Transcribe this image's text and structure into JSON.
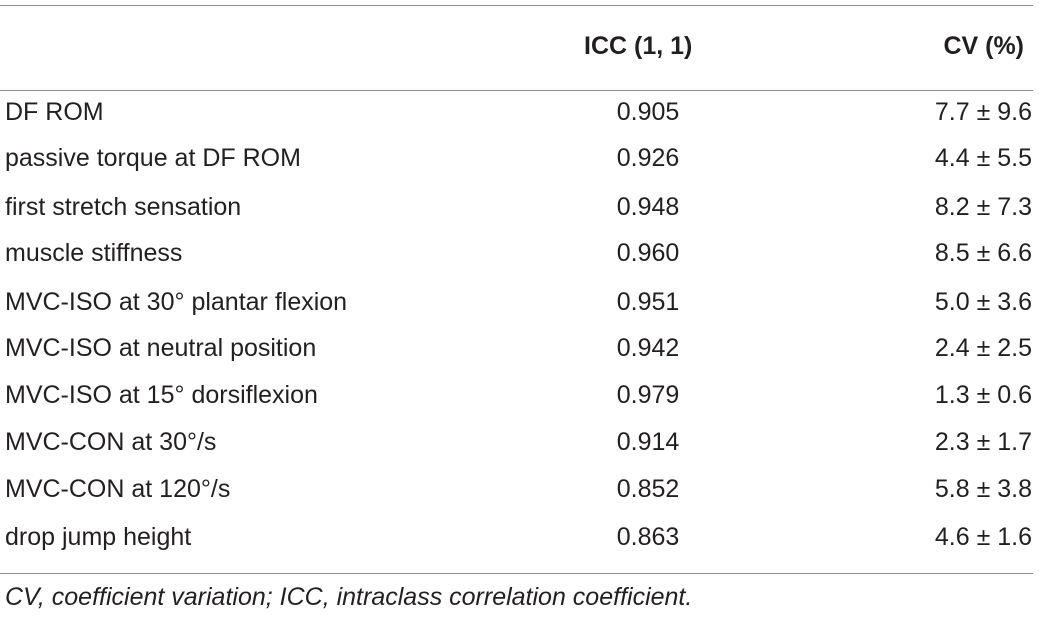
{
  "table": {
    "columns": {
      "icc": "ICC (1, 1)",
      "cv": "CV (%)"
    },
    "rows": [
      {
        "label": "DF ROM",
        "icc": "0.905",
        "cv": "7.7 ± 9.6"
      },
      {
        "label": "passive torque at DF ROM",
        "icc": "0.926",
        "cv": "4.4 ± 5.5"
      },
      {
        "label": "first stretch sensation",
        "icc": "0.948",
        "cv": "8.2 ± 7.3"
      },
      {
        "label": "muscle stiffness",
        "icc": "0.960",
        "cv": "8.5 ± 6.6"
      },
      {
        "label": "MVC-ISO at 30° plantar flexion",
        "icc": "0.951",
        "cv": "5.0 ± 3.6"
      },
      {
        "label": "MVC-ISO at neutral position",
        "icc": "0.942",
        "cv": "2.4 ± 2.5"
      },
      {
        "label": "MVC-ISO at 15° dorsiflexion",
        "icc": "0.979",
        "cv": "1.3 ± 0.6"
      },
      {
        "label": "MVC-CON at 30°/s",
        "icc": "0.914",
        "cv": "2.3 ± 1.7"
      },
      {
        "label": "MVC-CON at 120°/s",
        "icc": "0.852",
        "cv": "5.8 ± 3.8"
      },
      {
        "label": "drop jump height",
        "icc": "0.863",
        "cv": "4.6 ± 1.6"
      }
    ],
    "footnote": "CV, coefficient variation; ICC, intraclass correlation coefficient."
  }
}
